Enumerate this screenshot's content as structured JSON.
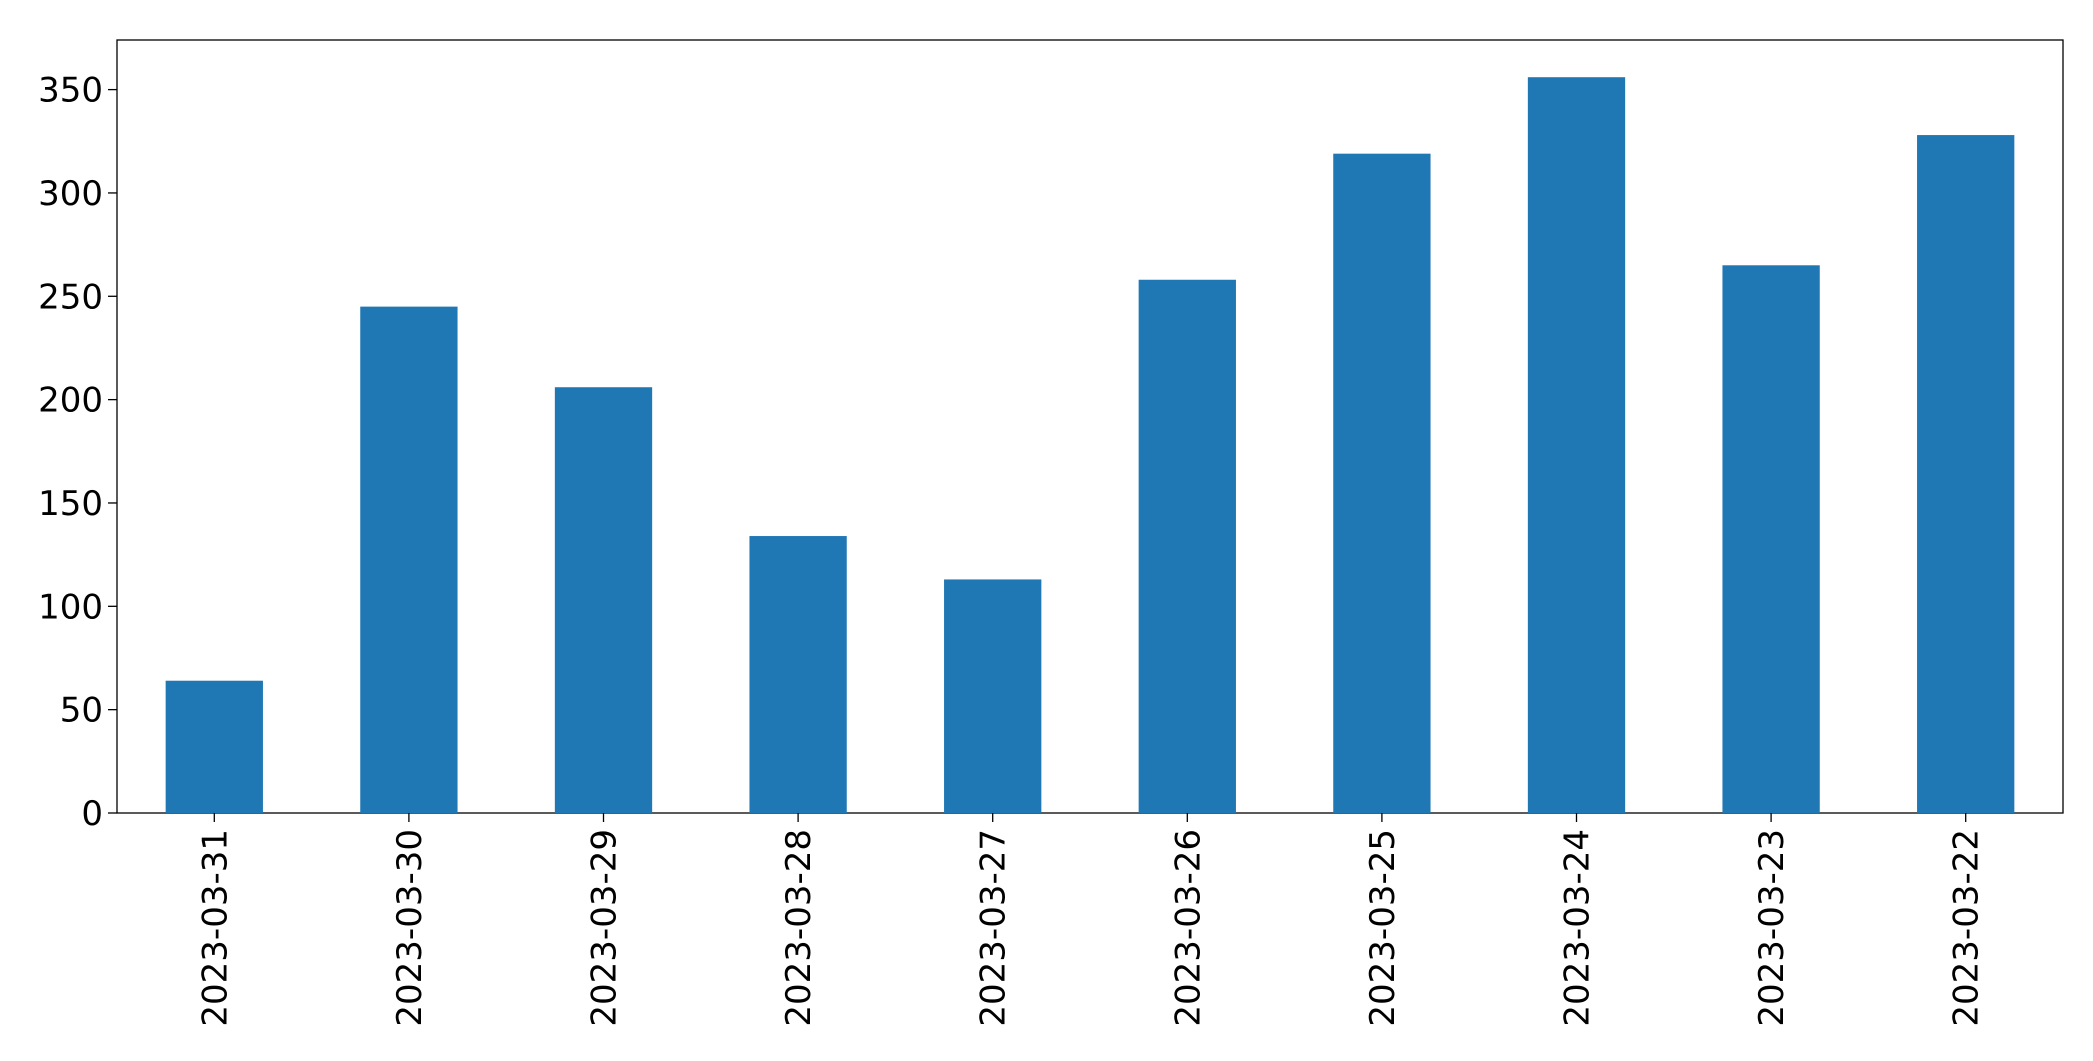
{
  "chart_data": {
    "type": "bar",
    "categories": [
      "2023-03-31",
      "2023-03-30",
      "2023-03-29",
      "2023-03-28",
      "2023-03-27",
      "2023-03-26",
      "2023-03-25",
      "2023-03-24",
      "2023-03-23",
      "2023-03-22"
    ],
    "values": [
      64,
      245,
      206,
      134,
      113,
      258,
      319,
      356,
      265,
      328
    ],
    "color": "#1f77b4",
    "ylim": [
      0,
      374
    ],
    "yticks": [
      0,
      50,
      100,
      150,
      200,
      250,
      300,
      350
    ],
    "grid": false
  }
}
